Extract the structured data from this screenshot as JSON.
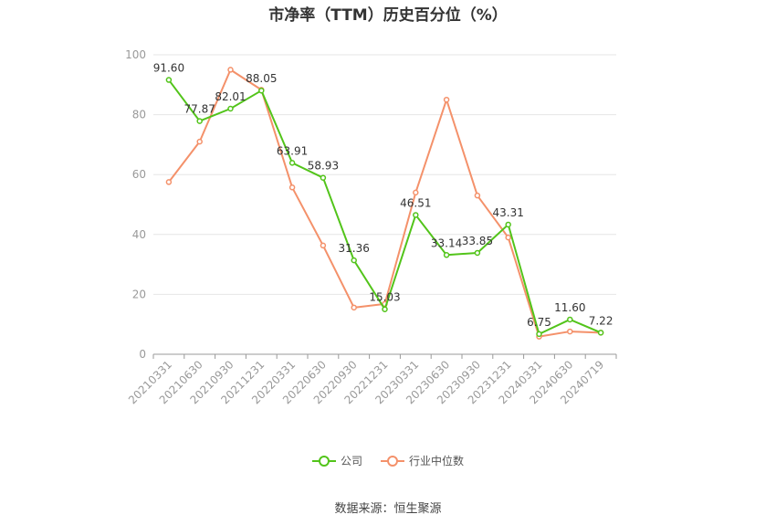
{
  "chart_data": {
    "type": "line",
    "title": "市净率（TTM）历史百分位（%）",
    "categories": [
      "20210331",
      "20210630",
      "20210930",
      "20211231",
      "20220331",
      "20220630",
      "20220930",
      "20221231",
      "20230331",
      "20230630",
      "20230930",
      "20231231",
      "20240331",
      "20240630",
      "20240719"
    ],
    "series": [
      {
        "name": "公司",
        "color": "#52c41a",
        "values": [
          91.6,
          77.87,
          82.01,
          88.05,
          63.91,
          58.93,
          31.36,
          15.03,
          46.51,
          33.14,
          33.85,
          43.31,
          6.75,
          11.6,
          7.22
        ],
        "labels": [
          "91.60",
          "77.87",
          "82.01",
          "88.05",
          "63.91",
          "58.93",
          "31.36",
          "15.03",
          "46.51",
          "33.14",
          "33.85",
          "43.31",
          "6.75",
          "11.60",
          "7.22"
        ]
      },
      {
        "name": "行业中位数",
        "color": "#f4916a",
        "values": [
          57.5,
          71,
          95,
          88.3,
          55.7,
          36.3,
          15.6,
          16.8,
          54,
          85,
          53,
          39,
          5.9,
          7.6,
          7.2
        ]
      }
    ],
    "ylim": [
      0,
      100
    ],
    "yticks": [
      "0",
      "20",
      "40",
      "60",
      "80",
      "100"
    ],
    "grid": true,
    "legend_position": "bottom"
  },
  "source": "数据来源：恒生聚源"
}
